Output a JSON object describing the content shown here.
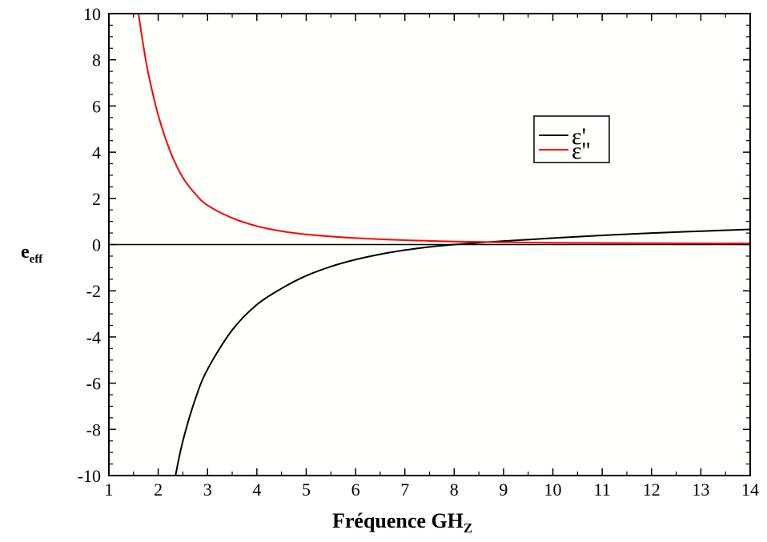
{
  "chart_data": {
    "type": "line",
    "title": "",
    "xlabel": {
      "main": "Fréquence GH",
      "sub": "Z"
    },
    "ylabel": {
      "main": "e",
      "sub": "eff"
    },
    "xlim": [
      1,
      14
    ],
    "ylim": [
      -10,
      10
    ],
    "xticks": [
      1,
      2,
      3,
      4,
      5,
      6,
      7,
      8,
      9,
      10,
      11,
      12,
      13,
      14
    ],
    "yticks": [
      -10,
      -8,
      -6,
      -4,
      -2,
      0,
      2,
      4,
      6,
      8,
      10
    ],
    "grid": false,
    "legend_position": "top-right",
    "series": [
      {
        "name": "ε'",
        "color": "#000000",
        "x": [
          2.35,
          2.5,
          2.75,
          3.0,
          3.5,
          4.0,
          4.5,
          5.0,
          5.5,
          6.0,
          6.5,
          7.0,
          7.5,
          8.0,
          8.5,
          9.0,
          10.0,
          11.0,
          12.0,
          13.0,
          14.0
        ],
        "y": [
          -10.0,
          -8.5,
          -6.7,
          -5.4,
          -3.7,
          -2.6,
          -1.9,
          -1.35,
          -0.95,
          -0.65,
          -0.42,
          -0.24,
          -0.1,
          0.0,
          0.08,
          0.15,
          0.28,
          0.4,
          0.5,
          0.58,
          0.66
        ]
      },
      {
        "name": "ε''",
        "color": "#ff0000",
        "x": [
          1.6,
          1.7,
          1.8,
          2.0,
          2.25,
          2.5,
          2.75,
          3.0,
          3.5,
          4.0,
          4.5,
          5.0,
          5.5,
          6.0,
          7.0,
          8.0,
          9.0,
          10.0,
          11.0,
          12.0,
          13.0,
          14.0
        ],
        "y": [
          10.0,
          8.6,
          7.4,
          5.6,
          4.0,
          2.9,
          2.2,
          1.7,
          1.15,
          0.8,
          0.58,
          0.44,
          0.35,
          0.28,
          0.19,
          0.13,
          0.1,
          0.08,
          0.07,
          0.06,
          0.05,
          0.05
        ]
      }
    ],
    "zero_line": true
  }
}
